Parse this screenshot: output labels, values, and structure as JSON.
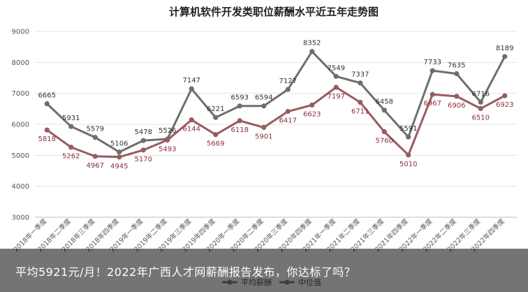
{
  "chart_data": {
    "type": "line",
    "title": "计算机软件开发类职位薪酬水平近五年走势图",
    "categories": [
      "2018年一季度",
      "2018年二季度",
      "2018年三季度",
      "2018年四季度",
      "2019年一季度",
      "2019年二季度",
      "2019年三季度",
      "2019年四季度",
      "2020年一季度",
      "2020年二季度",
      "2020年三季度",
      "2020年四季度",
      "2021年一季度",
      "2021年二季度",
      "2021年三季度",
      "2021年四季度",
      "2022年一季度",
      "2022年二季度",
      "2022年三季度",
      "2022年四季度"
    ],
    "series": [
      {
        "name": "平均薪酬",
        "color": "#6e6e6e",
        "values": [
          6665,
          5931,
          5579,
          5106,
          5478,
          5526,
          7147,
          6221,
          6593,
          6594,
          7127,
          8352,
          7549,
          7337,
          6458,
          5591,
          7733,
          7635,
          6716,
          8189
        ]
      },
      {
        "name": "中位值",
        "color": "#9a5a60",
        "values": [
          5818,
          5262,
          4967,
          4945,
          5170,
          5493,
          6144,
          5669,
          6118,
          5901,
          6417,
          6623,
          7197,
          6711,
          5760,
          5010,
          6967,
          6906,
          6510,
          6923
        ]
      }
    ],
    "ylim": [
      3000,
      9000
    ],
    "yticks": [
      3000,
      4000,
      5000,
      6000,
      7000,
      8000,
      9000
    ],
    "grid": true,
    "legend": "bottom"
  },
  "banner": {
    "text": "平均5921元/月！2022年广西人才网薪酬报告发布，你达标了吗？"
  }
}
